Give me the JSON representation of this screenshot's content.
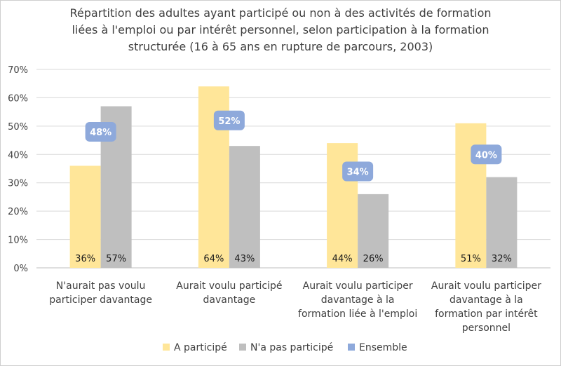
{
  "chart_data": {
    "type": "bar",
    "title_lines": [
      "Répartition  des adultes ayant participé  ou non à des activités  de formation",
      "liées à l'emploi ou par intérêt personnel, selon participation  à la formation",
      "structurée  (16 à 65 ans en rupture de parcours, 2003)"
    ],
    "categories": [
      [
        "N'aurait pas voulu",
        "participer davantage"
      ],
      [
        "Aurait voulu participé",
        "davantage"
      ],
      [
        "Aurait voulu participer",
        "davantage à la",
        "formation liée à l'emploi"
      ],
      [
        "Aurait voulu participer",
        "davantage à la",
        "formation par intérêt",
        "personnel"
      ]
    ],
    "series": [
      {
        "name": "A participé",
        "values": [
          36,
          64,
          44,
          51
        ],
        "labels": [
          "36%",
          "64%",
          "44%",
          "51%"
        ],
        "color": "#FFE699"
      },
      {
        "name": "N'a pas participé",
        "values": [
          57,
          43,
          26,
          32
        ],
        "labels": [
          "57%",
          "43%",
          "26%",
          "32%"
        ],
        "color": "#BFBFBF"
      },
      {
        "name": "Ensemble",
        "values": [
          48,
          52,
          34,
          40
        ],
        "labels": [
          "48%",
          "52%",
          "34%",
          "40%"
        ],
        "color": "#8EA9DB"
      }
    ],
    "ylim": [
      0,
      70
    ],
    "yticks": [
      0,
      10,
      20,
      30,
      40,
      50,
      60,
      70
    ],
    "ytick_labels": [
      "0%",
      "10%",
      "20%",
      "30%",
      "40%",
      "50%",
      "60%",
      "70%"
    ],
    "grid": true,
    "legend_position": "bottom"
  }
}
